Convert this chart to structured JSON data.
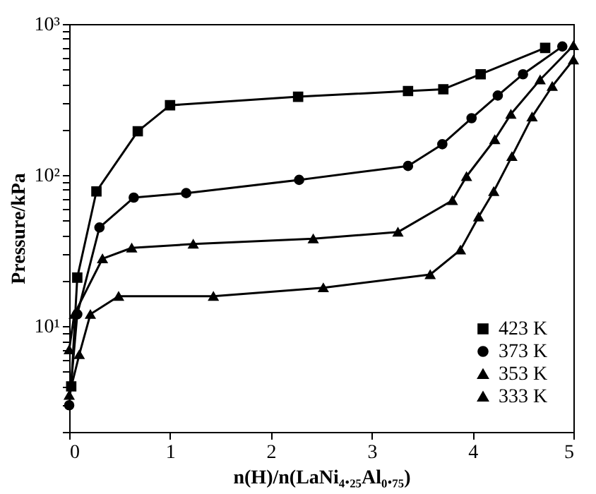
{
  "chart_data": {
    "type": "line",
    "xlabel": "n(H)/n(LaNi₄.₂₅Al₀.₇₅)",
    "ylabel": "Pressure/kPa",
    "log": true,
    "xlim": [
      0,
      5
    ],
    "xticks": [
      0,
      1,
      2,
      3,
      4,
      5
    ],
    "ylim": [
      2,
      1000
    ],
    "yticks": [
      {
        "value": 2,
        "label": null
      },
      {
        "value": 3,
        "label": null
      },
      {
        "value": 4,
        "label": null
      },
      {
        "value": 5,
        "label": null
      },
      {
        "value": 6,
        "label": null
      },
      {
        "value": 7,
        "label": null
      },
      {
        "value": 8,
        "label": null
      },
      {
        "value": 9,
        "label": null
      },
      {
        "value": 10,
        "label": "10¹"
      },
      {
        "value": 20,
        "label": null
      },
      {
        "value": 30,
        "label": null
      },
      {
        "value": 40,
        "label": null
      },
      {
        "value": 50,
        "label": null
      },
      {
        "value": 60,
        "label": null
      },
      {
        "value": 70,
        "label": null
      },
      {
        "value": 80,
        "label": null
      },
      {
        "value": 90,
        "label": null
      },
      {
        "value": 100,
        "label": "10²"
      },
      {
        "value": 200,
        "label": null
      },
      {
        "value": 300,
        "label": null
      },
      {
        "value": 400,
        "label": null
      },
      {
        "value": 500,
        "label": null
      },
      {
        "value": 600,
        "label": null
      },
      {
        "value": 700,
        "label": null
      },
      {
        "value": 800,
        "label": null
      },
      {
        "value": 900,
        "label": null
      },
      {
        "value": 1000,
        "label": "10³"
      }
    ],
    "grid": false,
    "legend": "bottom right",
    "line_style": "solid",
    "series": [
      {
        "name": "423 K",
        "color": "#000000",
        "marker": "square",
        "x": [
          0.02,
          0.08,
          0.27,
          0.68,
          1.0,
          2.27,
          3.36,
          3.71,
          4.08,
          4.72
        ],
        "values": [
          4,
          21,
          78,
          195,
          290,
          330,
          360,
          370,
          465,
          695
        ]
      },
      {
        "name": "373 K",
        "color": "#000000",
        "marker": "circle",
        "x": [
          0,
          0.08,
          0.3,
          0.64,
          1.16,
          2.28,
          3.36,
          3.7,
          3.99,
          4.25,
          4.5,
          4.89
        ],
        "values": [
          3,
          12,
          45,
          71,
          76,
          93,
          115,
          160,
          238,
          336,
          465,
          710
        ]
      },
      {
        "name": "353 K",
        "color": "#000000",
        "marker": "triangle",
        "x": [
          0,
          0.05,
          0.33,
          0.62,
          1.23,
          2.42,
          3.26,
          3.8,
          3.94,
          4.22,
          4.38,
          4.67,
          5.0
        ],
        "values": [
          7,
          12,
          28,
          33,
          35,
          38,
          42,
          68,
          98,
          172,
          253,
          428,
          720
        ]
      },
      {
        "name": "333 K",
        "color": "#000000",
        "marker": "triangle",
        "x": [
          0,
          0.1,
          0.21,
          0.49,
          1.43,
          2.52,
          3.58,
          3.88,
          4.06,
          4.21,
          4.39,
          4.59,
          4.79,
          5.0
        ],
        "values": [
          3.5,
          6.5,
          12,
          15.8,
          15.8,
          18,
          22,
          32,
          53,
          78,
          133,
          243,
          387,
          580
        ]
      }
    ]
  }
}
